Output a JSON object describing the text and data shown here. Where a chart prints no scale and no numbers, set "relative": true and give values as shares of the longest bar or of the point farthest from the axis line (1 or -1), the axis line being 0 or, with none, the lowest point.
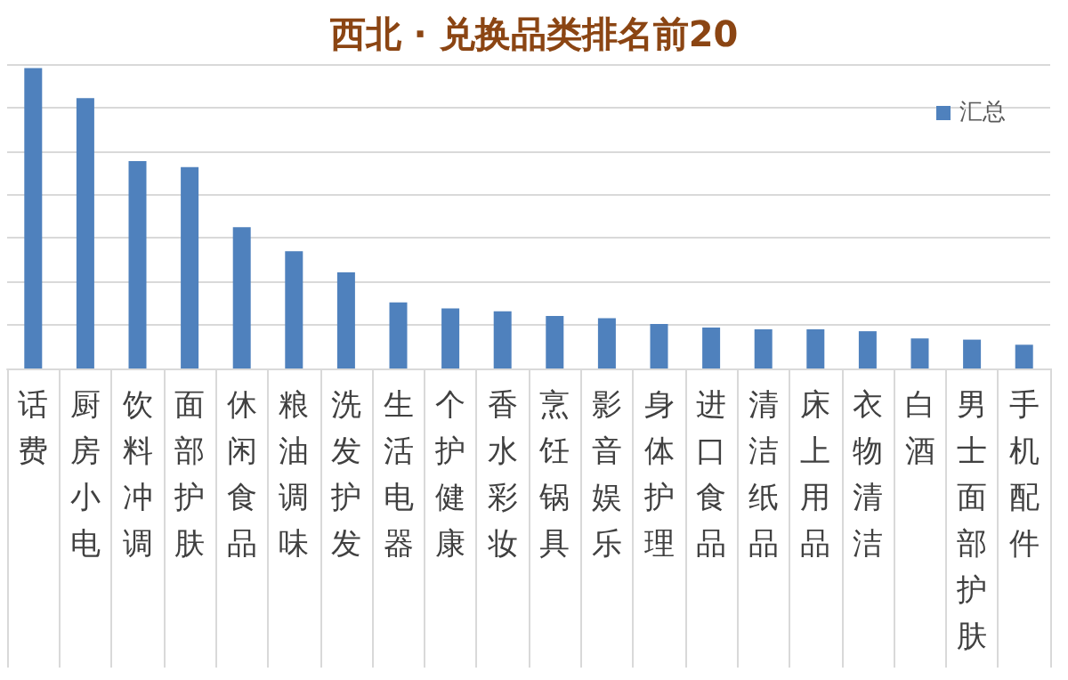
{
  "chart_data": {
    "type": "bar",
    "title": "西北 · 兑换品类排名前20",
    "relative": true,
    "grid": "y",
    "legend": "top right",
    "categories": [
      "话费",
      "厨房小电",
      "饮料冲调",
      "面部护肤",
      "休闲食品",
      "粮油调味",
      "洗发护发",
      "生活电器",
      "个护健康",
      "香水彩妆",
      "烹饪锅具",
      "影音娱乐",
      "身体护理",
      "进口食品",
      "清洁纸品",
      "床上用品",
      "衣物清洁",
      "白酒",
      "男士面部护肤",
      "手机配件"
    ],
    "series": [
      {
        "name": "汇总",
        "color": "#4f81bd",
        "values": [
          1,
          0.9,
          0.69,
          0.67,
          0.47,
          0.39,
          0.32,
          0.22,
          0.2,
          0.19,
          0.175,
          0.167,
          0.148,
          0.136,
          0.13,
          0.13,
          0.124,
          0.1,
          0.096,
          0.079
        ]
      }
    ]
  }
}
